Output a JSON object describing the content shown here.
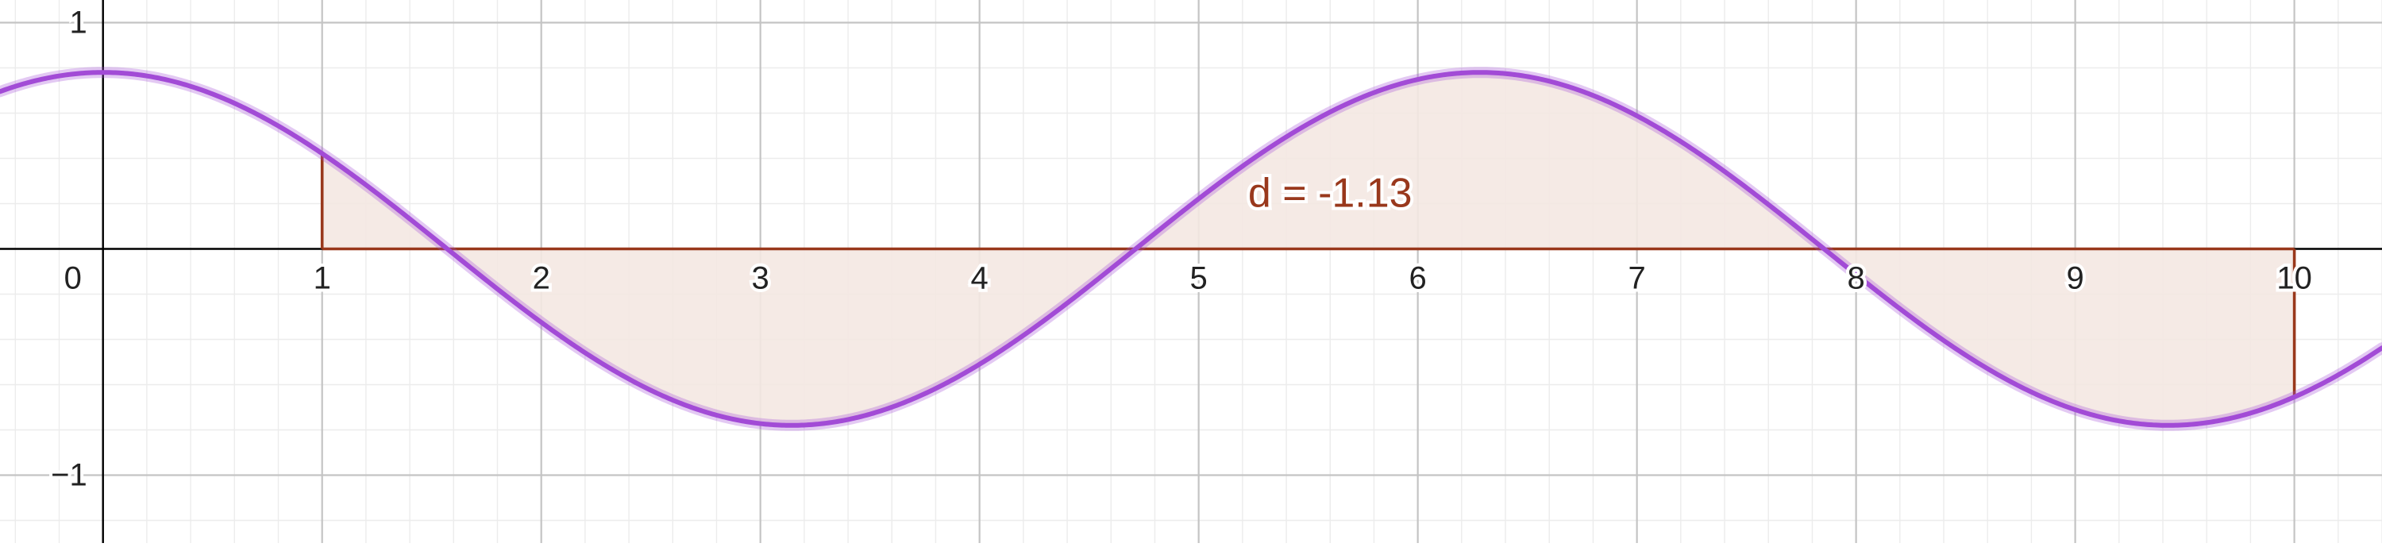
{
  "chart_data": {
    "type": "area",
    "title": "",
    "xlabel": "",
    "ylabel": "",
    "xlim": [
      -0.47,
      10.4
    ],
    "ylim": [
      -1.3,
      1.1
    ],
    "grid": true,
    "function": {
      "expression": "0.78*cos(x)",
      "amplitude": 0.78,
      "color": "#a24bd6"
    },
    "shaded_region": {
      "x_from": 1,
      "x_to": 10,
      "baseline": 0,
      "fill_color": "#f4e8e2",
      "border_color": "#99381c"
    },
    "annotation": {
      "text": "d = -1.13",
      "x": 5.6,
      "y": 0.25
    },
    "x_ticks": [
      {
        "value": 0,
        "label": "0"
      },
      {
        "value": 1,
        "label": "1"
      },
      {
        "value": 2,
        "label": "2"
      },
      {
        "value": 3,
        "label": "3"
      },
      {
        "value": 4,
        "label": "4"
      },
      {
        "value": 5,
        "label": "5"
      },
      {
        "value": 6,
        "label": "6"
      },
      {
        "value": 7,
        "label": "7"
      },
      {
        "value": 8,
        "label": "8"
      },
      {
        "value": 9,
        "label": "9"
      },
      {
        "value": 10,
        "label": "10"
      }
    ],
    "y_ticks": [
      {
        "value": 1,
        "label": "1"
      },
      {
        "value": -1,
        "label": "−1"
      }
    ],
    "colors": {
      "minor_grid": "#ececec",
      "major_grid": "#c4c4c4",
      "axis": "#000000"
    }
  }
}
